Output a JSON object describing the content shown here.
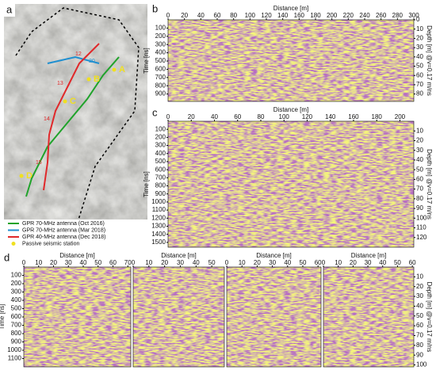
{
  "panel_a": {
    "label": "a",
    "map_labels": [
      "A",
      "B",
      "C",
      "D"
    ],
    "line_labels": [
      "12",
      "13",
      "14",
      "15",
      "20"
    ],
    "scale": "50 m",
    "legend": [
      {
        "name": "GPR 70-MHz antenna (Oct 2016)",
        "color": "#1fa32a"
      },
      {
        "name": "GPR 70-MHz antenna (Mar 2018)",
        "color": "#1f8fd0"
      },
      {
        "name": "GPR 40-MHz antenna (Dec 2018)",
        "color": "#e0282a"
      },
      {
        "name": "Passive seismic station",
        "color": "#f0e020"
      }
    ]
  },
  "panel_b": {
    "label": "b",
    "x_title": "Distance [m]",
    "xlim": [
      0,
      300
    ],
    "xticks": [
      0,
      20,
      40,
      60,
      80,
      100,
      120,
      140,
      160,
      180,
      200,
      220,
      240,
      260,
      280,
      300
    ],
    "y_title": "Time [ns]",
    "ylim": [
      0,
      990
    ],
    "yticks": [
      100,
      200,
      300,
      400,
      500,
      600,
      700,
      800,
      900
    ],
    "y2_title": "Depth [m] @v=0.17 m/ns",
    "y2lim": [
      0,
      88
    ],
    "y2ticks": [
      0,
      10,
      20,
      30,
      40,
      50,
      60,
      70,
      80
    ]
  },
  "panel_c": {
    "label": "c",
    "x_title": "Distance [m]",
    "xlim": [
      0,
      212
    ],
    "xticks": [
      0,
      20,
      40,
      60,
      80,
      100,
      120,
      140,
      160,
      180,
      200
    ],
    "y_title": "Time [ns]",
    "ylim": [
      0,
      1560
    ],
    "yticks": [
      100,
      200,
      300,
      400,
      500,
      600,
      700,
      800,
      900,
      1000,
      1100,
      1200,
      1300,
      1400,
      1500
    ],
    "y2_title": "Depth [m] @v=0.17 m/ns",
    "y2lim": [
      0,
      130
    ],
    "y2ticks": [
      10,
      20,
      30,
      40,
      50,
      60,
      70,
      80,
      90,
      100,
      110,
      120
    ]
  },
  "panel_d": {
    "label": "d",
    "y_title": "Time [ns]",
    "ylim": [
      0,
      1200
    ],
    "yticks": [
      100,
      200,
      300,
      400,
      500,
      600,
      700,
      800,
      900,
      1000,
      1100
    ],
    "y2_title": "Depth [m] @v=0.17 m/ns",
    "y2lim": [
      0,
      102
    ],
    "y2ticks": [
      10,
      20,
      30,
      40,
      50,
      60,
      70,
      80,
      90,
      100
    ],
    "sections": [
      {
        "x_title": "Distance [m]",
        "xlim": [
          0,
          72
        ],
        "xticks": [
          0,
          10,
          20,
          30,
          40,
          50,
          60,
          70
        ]
      },
      {
        "x_title": "Distance [m]",
        "xlim": [
          0,
          58
        ],
        "xticks": [
          0,
          10,
          20,
          30,
          40,
          50
        ]
      },
      {
        "x_title": "Distance [m]",
        "xlim": [
          0,
          62
        ],
        "xticks": [
          0,
          10,
          20,
          30,
          40,
          50,
          60
        ]
      },
      {
        "x_title": "Distance [m]",
        "xlim": [
          0,
          61
        ],
        "xticks": [
          0,
          10,
          20,
          30,
          40,
          50,
          60
        ]
      }
    ]
  }
}
